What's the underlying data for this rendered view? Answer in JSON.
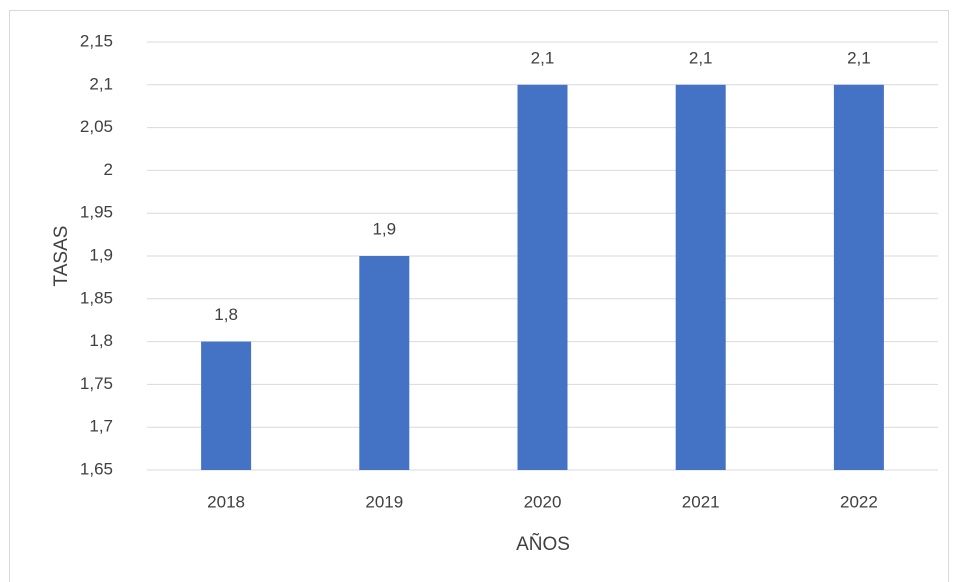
{
  "chart_data": {
    "type": "bar",
    "x_label": "AÑOS",
    "y_label": "TASAS",
    "categories": [
      "2018",
      "2019",
      "2020",
      "2021",
      "2022"
    ],
    "values": [
      1.8,
      1.9,
      2.1,
      2.1,
      2.1
    ],
    "value_labels": [
      "1,8",
      "1,9",
      "2,1",
      "2,1",
      "2,1"
    ],
    "color": "#4472c4",
    "ylim": [
      1.65,
      2.15
    ],
    "yticks": [
      {
        "value": 1.65,
        "label": "1,65"
      },
      {
        "value": 1.7,
        "label": "1,7"
      },
      {
        "value": 1.75,
        "label": "1,75"
      },
      {
        "value": 1.8,
        "label": "1,8"
      },
      {
        "value": 1.85,
        "label": "1,85"
      },
      {
        "value": 1.9,
        "label": "1,9"
      },
      {
        "value": 1.95,
        "label": "1,95"
      },
      2,
      {
        "value": 2.05,
        "label": "2,05"
      },
      {
        "value": 2.1,
        "label": "2,1"
      },
      {
        "value": 2.15,
        "label": "2,15"
      }
    ],
    "grid": true
  }
}
